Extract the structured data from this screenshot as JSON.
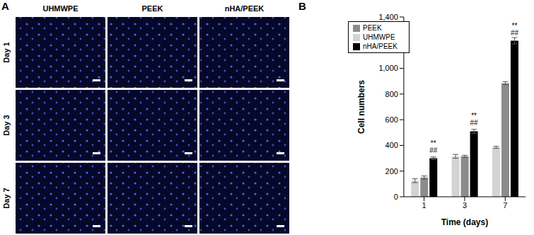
{
  "panel_a": {
    "label": "A",
    "columns": [
      "UHMWPE",
      "PEEK",
      "nHA/PEEK"
    ],
    "rows": [
      "Day 1",
      "Day 3",
      "Day 7"
    ]
  },
  "chart_data": {
    "type": "bar",
    "panel_label": "B",
    "x_label": "Time (days)",
    "y_label": "Cell numbers",
    "categories": [
      "1",
      "3",
      "7"
    ],
    "ylim": [
      0,
      1400
    ],
    "yticks": [
      0,
      200,
      400,
      600,
      800,
      {
        "value": 1000,
        "label": "1,000"
      },
      {
        "value": 1200,
        "label": "1,200"
      },
      {
        "value": 1400,
        "label": "1,400"
      }
    ],
    "grid": false,
    "legend": "upper left",
    "series": [
      {
        "name": "UHMWPE",
        "color": "#d3d3d3",
        "values": [
          125,
          315,
          385
        ],
        "errors": [
          15,
          15,
          8
        ]
      },
      {
        "name": "PEEK",
        "color": "#8c8c8c",
        "values": [
          150,
          315,
          885
        ],
        "errors": [
          12,
          8,
          12
        ]
      },
      {
        "name": "nHA/PEEK",
        "color": "#000000",
        "values": [
          300,
          510,
          1215
        ],
        "errors": [
          10,
          15,
          25
        ],
        "annotations": [
          [
            "**",
            "##"
          ],
          [
            "**",
            "##"
          ],
          [
            "**",
            "##"
          ]
        ]
      }
    ]
  }
}
